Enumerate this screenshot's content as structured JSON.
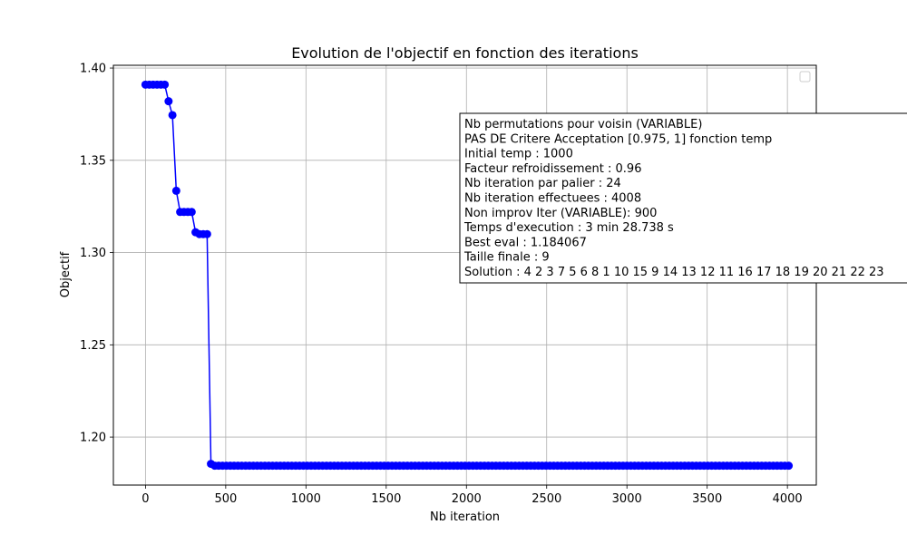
{
  "chart_data": {
    "type": "line",
    "title": "Evolution de l'objectif en fonction des iterations",
    "xlabel": "Nb iteration",
    "ylabel": "Objectif",
    "xlim": [
      -200,
      4180
    ],
    "ylim": [
      1.174,
      1.4015
    ],
    "xticks": [
      0,
      500,
      1000,
      1500,
      2000,
      2500,
      3000,
      3500,
      4000
    ],
    "yticks": [
      1.2,
      1.25,
      1.3,
      1.35,
      1.4
    ],
    "xtick_labels": [
      "0",
      "500",
      "1000",
      "1500",
      "2000",
      "2500",
      "3000",
      "3500",
      "4000"
    ],
    "ytick_labels": [
      "1.20",
      "1.25",
      "1.30",
      "1.35",
      "1.40"
    ],
    "grid": true,
    "legend": "upper right (empty)",
    "series": [
      {
        "color": "#0000ff",
        "marker": "circle",
        "x": [
          0,
          24,
          48,
          72,
          96,
          120,
          144,
          168,
          192,
          216,
          240,
          264,
          288,
          312,
          336,
          360,
          384,
          408,
          432
        ],
        "y": [
          1.391,
          1.391,
          1.391,
          1.391,
          1.391,
          1.391,
          1.382,
          1.3745,
          1.3335,
          1.322,
          1.322,
          1.322,
          1.322,
          1.311,
          1.31,
          1.31,
          1.31,
          1.1855,
          1.1845
        ],
        "constant_tail": {
          "from": 432,
          "to": 4008,
          "step": 24,
          "y": 1.1845
        }
      }
    ],
    "annotation_lines": [
      "Nb permutations pour voisin (VARIABLE)",
      "PAS DE Critere Acceptation [0.975, 1] fonction temp",
      "Initial temp : 1000",
      "Facteur refroidissement : 0.96",
      "Nb iteration par palier : 24",
      "Nb iteration effectuees : 4008",
      "Non improv Iter (VARIABLE): 900",
      "Temps d'execution : 3 min 28.738 s",
      "Best eval : 1.184067",
      "Taille finale : 9",
      "Solution : 4 2 3 7 5 6 8 1 10 15 9 14 13 12 11 16 17 18 19 20 21 22 23"
    ]
  }
}
